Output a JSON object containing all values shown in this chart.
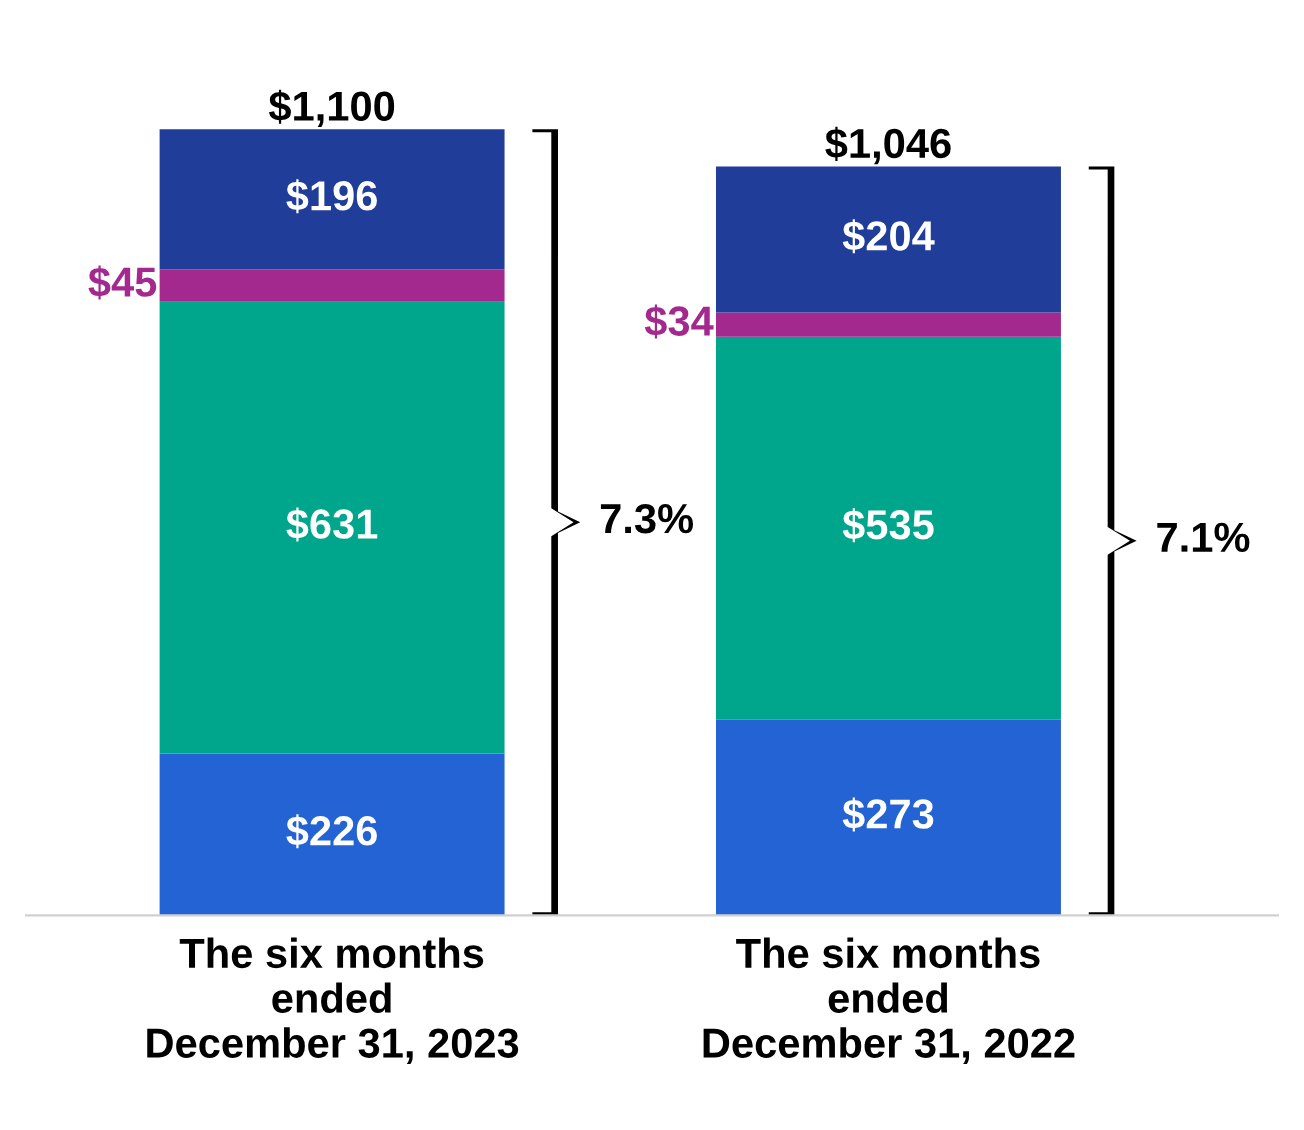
{
  "chart_data": {
    "type": "bar",
    "stacked": true,
    "categories": [
      "The six months\nended\nDecember 31, 2023",
      "The six months\nended\nDecember 31, 2022"
    ],
    "series": [
      {
        "color": "#2463d4",
        "values": [
          226,
          273
        ],
        "value_labels": [
          "$226",
          "$273"
        ]
      },
      {
        "color": "#00a68c",
        "values": [
          631,
          535
        ],
        "value_labels": [
          "$631",
          "$535"
        ]
      },
      {
        "color": "#a3298f",
        "values": [
          45,
          34
        ],
        "value_labels": [
          "$45",
          "$34"
        ]
      },
      {
        "color": "#1f3d99",
        "values": [
          196,
          204
        ],
        "value_labels": [
          "$196",
          "$204"
        ]
      }
    ],
    "totals": [
      "$1,100",
      "$1,046"
    ],
    "annotations": [
      "7.3%",
      "7.1%"
    ],
    "grid": false,
    "legend": false
  }
}
